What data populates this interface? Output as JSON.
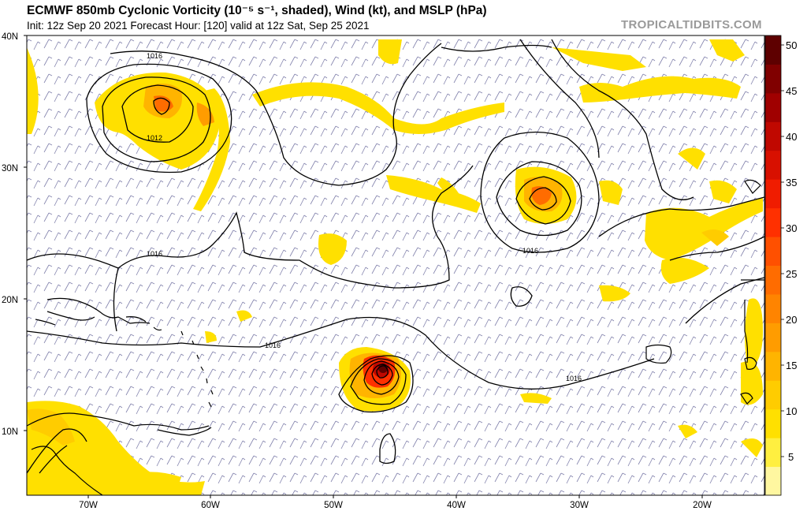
{
  "header": {
    "title": "ECMWF 850mb Cyclonic Vorticity (10⁻⁵ s⁻¹, shaded), Wind (kt), and MSLP (hPa)",
    "subtitle": "Init: 12z Sep 20 2021   Forecast Hour: [120]   valid at 12z Sat, Sep 25 2021",
    "brand": "TROPICALTIDBITS.COM"
  },
  "map": {
    "lat_labels": [
      "40N",
      "30N",
      "20N",
      "10N"
    ],
    "lon_labels": [
      "70W",
      "60W",
      "50W",
      "40W",
      "30W",
      "20W"
    ],
    "isobar_labels": [
      "1016",
      "1012",
      "1016",
      "1016",
      "1016",
      "1016"
    ]
  },
  "colorbar": {
    "labels": [
      "50",
      "45",
      "40",
      "35",
      "30",
      "25",
      "20",
      "15",
      "10",
      "5"
    ],
    "colors": [
      "#fff7a0",
      "#ffef40",
      "#ffe000",
      "#ffcc00",
      "#ffb400",
      "#ff9c00",
      "#ff8400",
      "#ff6c00",
      "#ff5000",
      "#ff3000",
      "#f01c00",
      "#d81000",
      "#c00800",
      "#a00000",
      "#800000",
      "#5e0000"
    ]
  }
}
